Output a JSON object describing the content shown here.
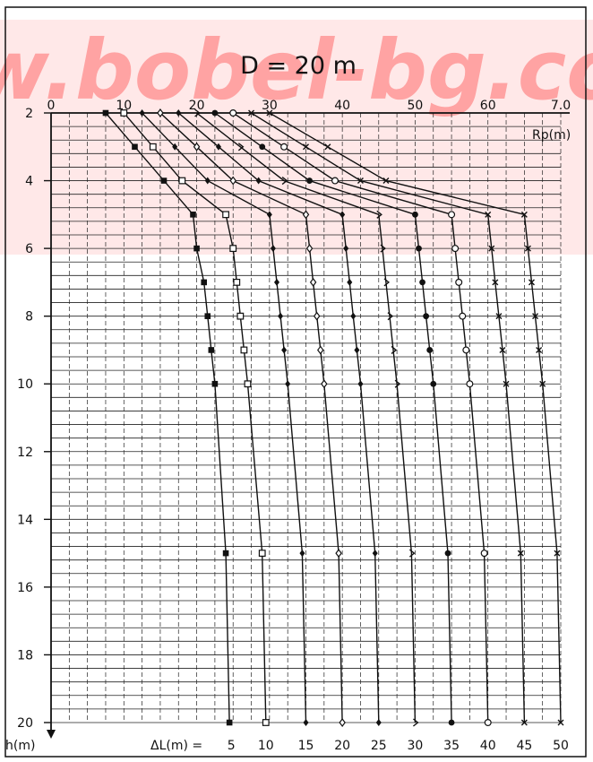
{
  "watermark": "w.bobel-bg.com",
  "colors": {
    "watermark_band": "#ffd6d6",
    "watermark_text": "#ff8c8c",
    "ink": "#111111",
    "grid": "#222222"
  },
  "chart_data": {
    "type": "line",
    "title": "D = 20 m",
    "xlabel": "Rp(m)",
    "ylabel": "h(m)",
    "xlim": [
      0,
      70
    ],
    "ylim": [
      2,
      20
    ],
    "y_inverted": true,
    "x_axis_position": "top",
    "x_ticks": [
      "0",
      "10",
      "20",
      "30",
      "40",
      "50",
      "60",
      "7.0"
    ],
    "y_ticks": [
      "2",
      "4",
      "6",
      "8",
      "10",
      "12",
      "14",
      "16",
      "18",
      "20"
    ],
    "grid": true,
    "legend_prefix": "ΔL(m) = ",
    "series": [
      {
        "name": "5",
        "marker": "filled-square",
        "points": [
          [
            7.5,
            2
          ],
          [
            11.5,
            3
          ],
          [
            15.5,
            4
          ],
          [
            19.5,
            5
          ],
          [
            20,
            6
          ],
          [
            21,
            7
          ],
          [
            21.5,
            8
          ],
          [
            22,
            9
          ],
          [
            22.5,
            10
          ],
          [
            24,
            15
          ],
          [
            24.5,
            20
          ]
        ]
      },
      {
        "name": "10",
        "marker": "open-square",
        "points": [
          [
            10,
            2
          ],
          [
            14,
            3
          ],
          [
            18,
            4
          ],
          [
            24,
            5
          ],
          [
            25,
            6
          ],
          [
            25.5,
            7
          ],
          [
            26,
            8
          ],
          [
            26.5,
            9
          ],
          [
            27,
            10
          ],
          [
            29,
            15
          ],
          [
            29.5,
            20
          ]
        ]
      },
      {
        "name": "15",
        "marker": "filled-diamond",
        "points": [
          [
            12.5,
            2
          ],
          [
            17,
            3
          ],
          [
            21.5,
            4
          ],
          [
            30,
            5
          ],
          [
            30.5,
            6
          ],
          [
            31,
            7
          ],
          [
            31.5,
            8
          ],
          [
            32,
            9
          ],
          [
            32.5,
            10
          ],
          [
            34.5,
            15
          ],
          [
            35,
            20
          ]
        ]
      },
      {
        "name": "20",
        "marker": "open-diamond",
        "points": [
          [
            15,
            2
          ],
          [
            20,
            3
          ],
          [
            25,
            4
          ],
          [
            35,
            5
          ],
          [
            35.5,
            6
          ],
          [
            36,
            7
          ],
          [
            36.5,
            8
          ],
          [
            37,
            9
          ],
          [
            37.5,
            10
          ],
          [
            39.5,
            15
          ],
          [
            40,
            20
          ]
        ]
      },
      {
        "name": "25",
        "marker": "filled-diamond",
        "points": [
          [
            17.5,
            2
          ],
          [
            23,
            3
          ],
          [
            28.5,
            4
          ],
          [
            40,
            5
          ],
          [
            40.5,
            6
          ],
          [
            41,
            7
          ],
          [
            41.5,
            8
          ],
          [
            42,
            9
          ],
          [
            42.5,
            10
          ],
          [
            44.5,
            15
          ],
          [
            45,
            20
          ]
        ]
      },
      {
        "name": "30",
        "marker": "half-diamond",
        "points": [
          [
            20,
            2
          ],
          [
            26,
            3
          ],
          [
            32,
            4
          ],
          [
            45,
            5
          ],
          [
            45.5,
            6
          ],
          [
            46,
            7
          ],
          [
            46.5,
            8
          ],
          [
            47,
            9
          ],
          [
            47.5,
            10
          ],
          [
            49.5,
            15
          ],
          [
            50,
            20
          ]
        ]
      },
      {
        "name": "35",
        "marker": "filled-circle",
        "points": [
          [
            22.5,
            2
          ],
          [
            29,
            3
          ],
          [
            35.5,
            4
          ],
          [
            50,
            5
          ],
          [
            50.5,
            6
          ],
          [
            51,
            7
          ],
          [
            51.5,
            8
          ],
          [
            52,
            9
          ],
          [
            52.5,
            10
          ],
          [
            54.5,
            15
          ],
          [
            55,
            20
          ]
        ]
      },
      {
        "name": "40",
        "marker": "open-circle",
        "points": [
          [
            25,
            2
          ],
          [
            32,
            3
          ],
          [
            39,
            4
          ],
          [
            55,
            5
          ],
          [
            55.5,
            6
          ],
          [
            56,
            7
          ],
          [
            56.5,
            8
          ],
          [
            57,
            9
          ],
          [
            57.5,
            10
          ],
          [
            59.5,
            15
          ],
          [
            60,
            20
          ]
        ]
      },
      {
        "name": "45",
        "marker": "x-cross",
        "points": [
          [
            27.5,
            2
          ],
          [
            35,
            3
          ],
          [
            42.5,
            4
          ],
          [
            60,
            5
          ],
          [
            60.5,
            6
          ],
          [
            61,
            7
          ],
          [
            61.5,
            8
          ],
          [
            62,
            9
          ],
          [
            62.5,
            10
          ],
          [
            64.5,
            15
          ],
          [
            65,
            20
          ]
        ]
      },
      {
        "name": "50",
        "marker": "x-cross",
        "points": [
          [
            30,
            2
          ],
          [
            38,
            3
          ],
          [
            46,
            4
          ],
          [
            65,
            5
          ],
          [
            65.5,
            6
          ],
          [
            66,
            7
          ],
          [
            66.5,
            8
          ],
          [
            67,
            9
          ],
          [
            67.5,
            10
          ],
          [
            69.5,
            15
          ],
          [
            70,
            20
          ]
        ]
      }
    ]
  }
}
